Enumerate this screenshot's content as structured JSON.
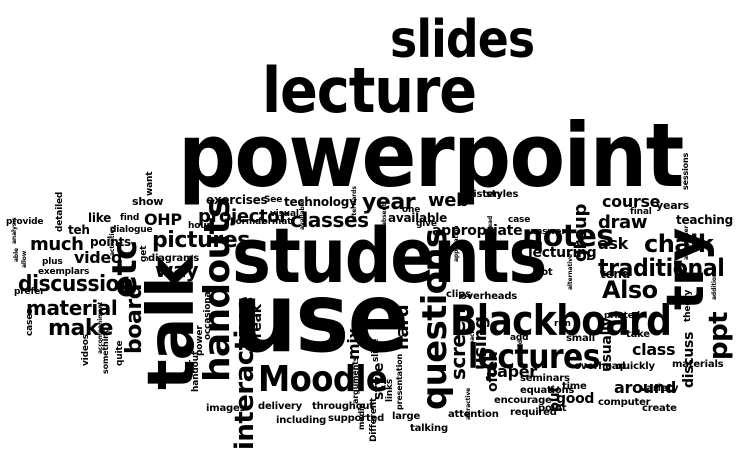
{
  "words": {
    "powerpoint": "powerpoint",
    "students": "students",
    "use": "use",
    "lecture": "lecture",
    "slides": "slides",
    "talk": "talk",
    "Blackboard": "Blackboard",
    "Moodle": "Moodle",
    "lectures": "lectures",
    "notes": "notes",
    "try": "try",
    "traditional": "traditional",
    "chalk": "chalk",
    "handouts": "handouts",
    "questions": "questions",
    "etc": "etc",
    "interactive": "interactive",
    "pictures": "pictures",
    "make": "make",
    "material": "material",
    "discussion": "discussion",
    "classes": "classes",
    "projector": "projector",
    "Also": "Also",
    "ppt": "ppt",
    "draw": "draw",
    "course": "course",
    "year": "year",
    "web": "web",
    "ask": "ask",
    "way": "way",
    "board": "board",
    "much": "much",
    "video": "video",
    "OHP": "OHP",
    "diagrams": "diagrams",
    "screen": "screen",
    "using": "using",
    "paper": "paper",
    "style": "style",
    "good": "good",
    "around": "around",
    "class": "class",
    "lecturing": "lecturing",
    "teaching": "teaching",
    "available": "available",
    "appropriate": "appropriate",
    "technology": "technology",
    "exercises": "exercises",
    "hard": "hard",
    "mix": "mix",
    "break": "break",
    "often": "often",
    "group": "group",
    "tend": "tend",
    "points": "points",
    "like": "like",
    "teh": "teh",
    "show": "show",
    "years": "years",
    "usually": "usually",
    "discuss": "discuss",
    "put": "put",
    "clips": "clips",
    "overheads": "overheads",
    "throughout": "throughout",
    "delivery": "delivery",
    "images": "images",
    "including": "including",
    "supported": "supported",
    "attention": "attention",
    "talking": "talking",
    "computer": "computer",
    "create": "create",
    "variety": "variety",
    "materials": "materials",
    "quickly": "quickly",
    "take": "take",
    "overhead": "overhead",
    "time": "time",
    "seminars": "seminars",
    "small": "small",
    "encourage": "encourage",
    "equations": "equations",
    "point": "point",
    "required": "required",
    "large": "large",
    "answer": "answer",
    "lot": "lot",
    "listen": "listen",
    "styles": "styles",
    "one": "one",
    "See": "See",
    "visual": "visual",
    "format": "format",
    "hour": "hour",
    "Formal": "Formal",
    "occasional": "occasional",
    "power": "power",
    "handout": "handout",
    "far": "far",
    "something": "something",
    "quite": "quite",
    "get": "get",
    "dialogue": "dialogue",
    "find": "find",
    "want": "want",
    "provide": "provide",
    "plus": "plus",
    "exemplars": "exemplars",
    "prefer": "prefer",
    "cases": "cases",
    "videos": "videos",
    "detailed": "detailed",
    "links": "links",
    "slide": "slide",
    "Different": "Different",
    "arguments": "arguments",
    "presentation": "presentation",
    "media": "media",
    "add": "add",
    "run": "run",
    "printed": "printed",
    "final": "final",
    "case": "case",
    "give": "give",
    "sessions": "sessions",
    "theory": "theory",
    "mm": "mm",
    "altogether": "altogether",
    "always": "always",
    "absent": "absent",
    "afterwards": "afterwards",
    "available2": "available",
    "activities": "activities",
    "able": "able",
    "accompaniment": "accompaniment",
    "additional": "additional",
    "alternative": "alternative",
    "application": "application",
    "approach": "approach",
    "attractive": "attractive",
    "ahead": "ahead",
    "analysis": "analysis",
    "allow": "allow",
    "aid": "aid"
  }
}
